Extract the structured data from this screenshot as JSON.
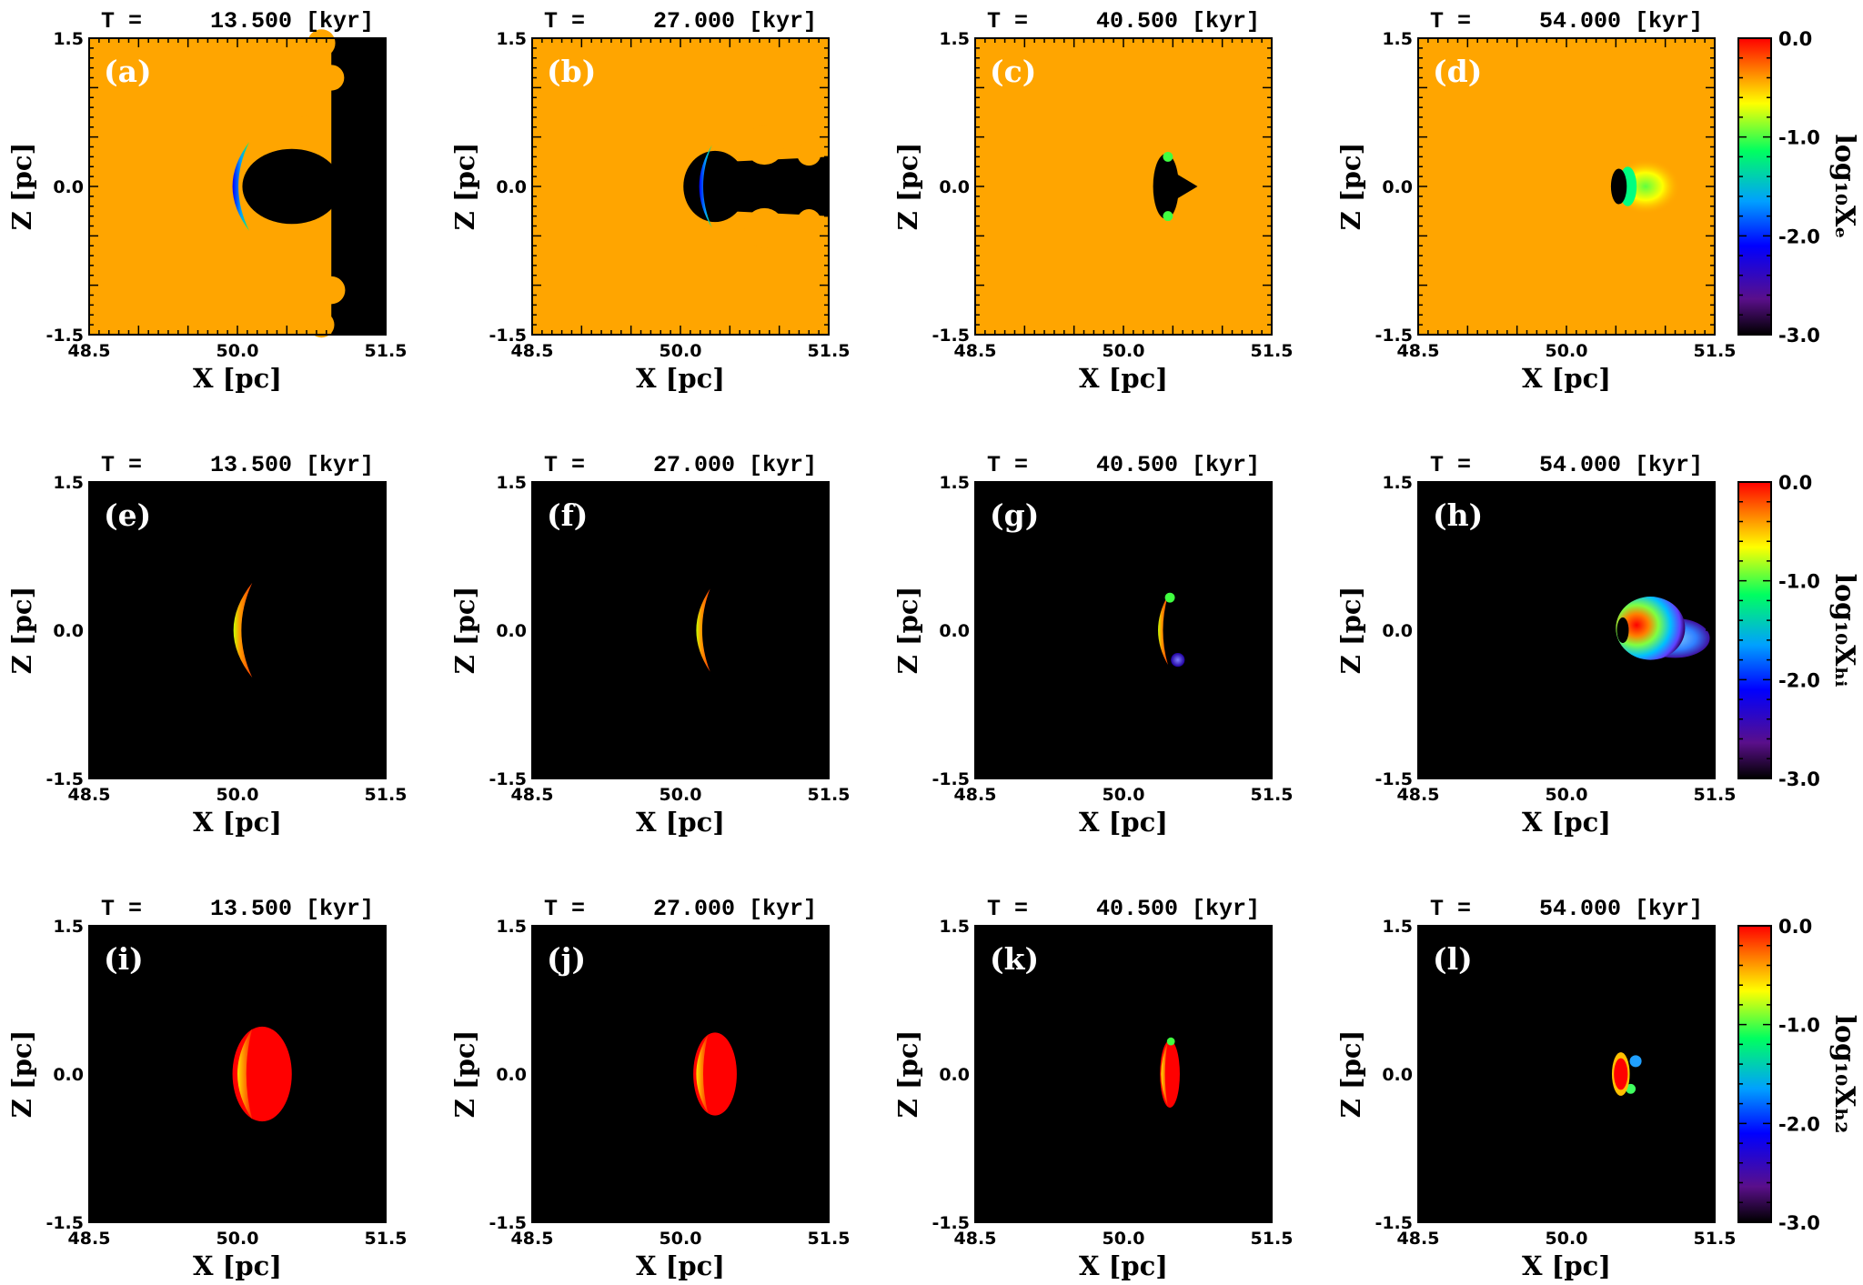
{
  "colors": {
    "background": "#ffffff",
    "ionized_fill": "#ffa500",
    "neutral_fill": "#000000",
    "colormap": [
      "#000000",
      "#5a0f8a",
      "#0000ff",
      "#00a0ff",
      "#00ff60",
      "#ffff00",
      "#ff8000",
      "#ff0000"
    ]
  },
  "chart_data": {
    "type": "heatmap",
    "layout": "3 rows x 4 columns of 2D maps",
    "xlabel": "X [pc]",
    "ylabel": "Z [pc]",
    "xlim": [
      48.5,
      51.5
    ],
    "ylim": [
      -1.5,
      1.5
    ],
    "xticks": [
      "48.5",
      "50.0",
      "51.5"
    ],
    "yticks": [
      "1.5",
      "0.0",
      "-1.5"
    ],
    "times_kyr": [
      13.5,
      27.0,
      40.5,
      54.0
    ],
    "panel_titles": [
      "T =     13.500 [kyr]",
      "T =     27.000 [kyr]",
      "T =     40.500 [kyr]",
      "T =     54.000 [kyr]"
    ],
    "rows": [
      {
        "quantity": "log10 Xe",
        "colorbar_label": "log₁₀Xₑ",
        "colorbar_range": [
          -3.0,
          0.0
        ],
        "colorbar_ticks": [
          "0.0",
          "-1.0",
          "-2.0",
          "-3.0"
        ],
        "panel_labels": [
          "(a)",
          "(b)",
          "(c)",
          "(d)"
        ]
      },
      {
        "quantity": "log10 XHI",
        "colorbar_label": "log₁₀Xₕᵢ",
        "colorbar_range": [
          -3.0,
          0.0
        ],
        "colorbar_ticks": [
          "0.0",
          "-1.0",
          "-2.0",
          "-3.0"
        ],
        "panel_labels": [
          "(e)",
          "(f)",
          "(g)",
          "(h)"
        ]
      },
      {
        "quantity": "log10 XH2",
        "colorbar_label": "log₁₀Xₕ₂",
        "colorbar_range": [
          -3.0,
          0.0
        ],
        "colorbar_ticks": [
          "0.0",
          "-1.0",
          "-2.0",
          "-3.0"
        ],
        "panel_labels": [
          "(i)",
          "(j)",
          "(k)",
          "(l)"
        ]
      }
    ]
  }
}
